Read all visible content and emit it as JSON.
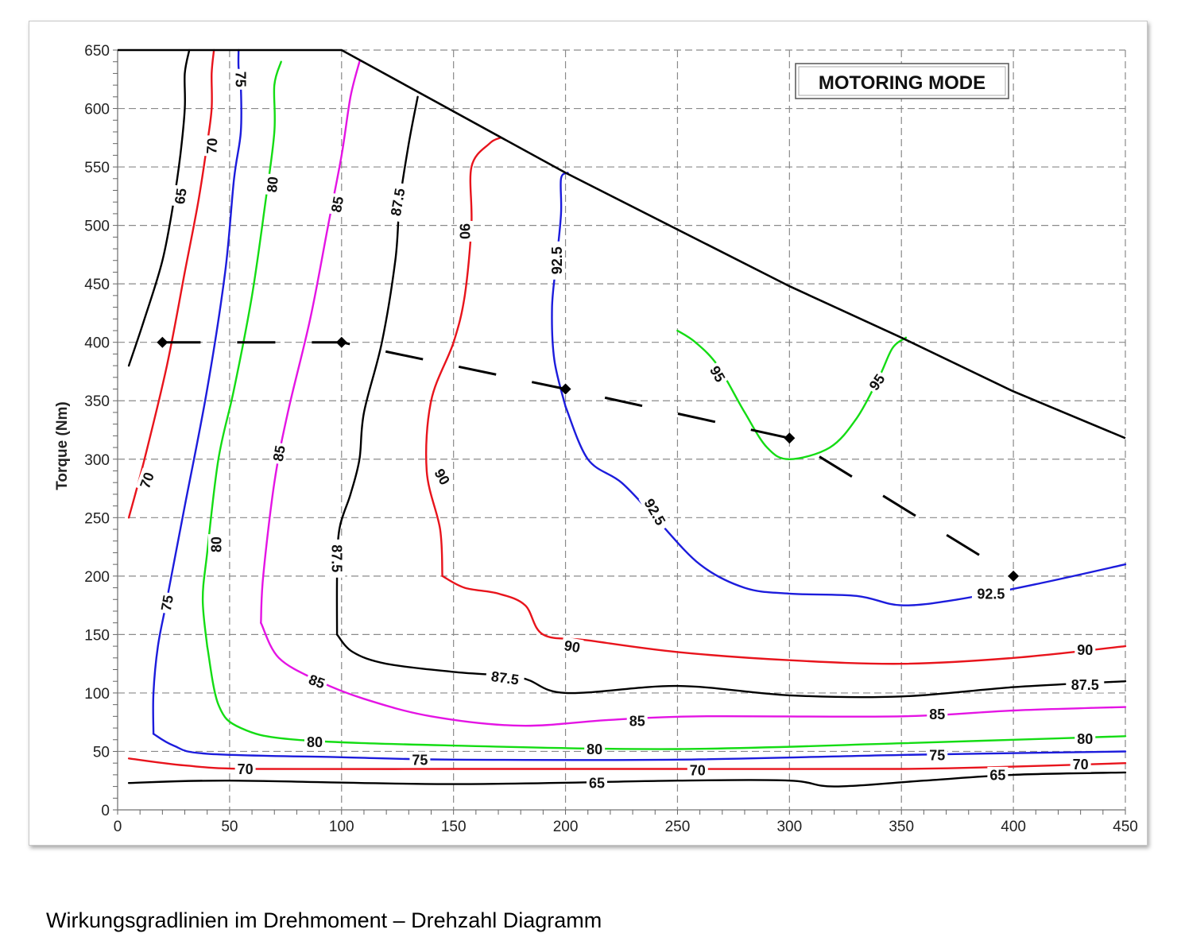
{
  "caption": "Wirkungsgradlinien im Drehmoment – Drehzahl Diagramm",
  "chart_data": {
    "type": "line",
    "title": "",
    "mode_label": "MOTORING MODE",
    "xlabel": "",
    "ylabel": "Torque (Nm)",
    "xlim": [
      0,
      450
    ],
    "ylim": [
      0,
      650
    ],
    "xticks": [
      0,
      50,
      100,
      150,
      200,
      250,
      300,
      350,
      400,
      450
    ],
    "yticks": [
      0,
      50,
      100,
      150,
      200,
      250,
      300,
      350,
      400,
      450,
      500,
      550,
      600,
      650
    ],
    "grid": true,
    "max_torque_envelope": [
      [
        0,
        650
      ],
      [
        100,
        650
      ],
      [
        200,
        545
      ],
      [
        300,
        448
      ],
      [
        350,
        404
      ],
      [
        400,
        358
      ],
      [
        450,
        318
      ]
    ],
    "operating_points": [
      [
        20,
        400
      ],
      [
        100,
        400
      ],
      [
        200,
        360
      ],
      [
        300,
        318
      ],
      [
        400,
        200
      ]
    ],
    "colors": {
      "65": "#000000",
      "70": "#e8141c",
      "75": "#1c1cdc",
      "80": "#14dc14",
      "85": "#e414e4",
      "87.5": "#000000",
      "90": "#e8141c",
      "92.5": "#1c1cdc",
      "95": "#14dc14"
    },
    "series": [
      {
        "level": "65",
        "points": [
          [
            5,
            380
          ],
          [
            12,
            420
          ],
          [
            20,
            470
          ],
          [
            25,
            520
          ],
          [
            28,
            560
          ],
          [
            30,
            600
          ],
          [
            30,
            630
          ],
          [
            32,
            650
          ]
        ]
      },
      {
        "level": "70",
        "points": [
          [
            5,
            250
          ],
          [
            12,
            300
          ],
          [
            22,
            380
          ],
          [
            30,
            460
          ],
          [
            36,
            520
          ],
          [
            40,
            570
          ],
          [
            42,
            600
          ],
          [
            42,
            630
          ],
          [
            43,
            650
          ]
        ]
      },
      {
        "level": "75",
        "points": [
          [
            16,
            65
          ],
          [
            16,
            100
          ],
          [
            18,
            140
          ],
          [
            22,
            180
          ],
          [
            30,
            260
          ],
          [
            40,
            360
          ],
          [
            48,
            460
          ],
          [
            52,
            540
          ],
          [
            55,
            580
          ],
          [
            55,
            620
          ],
          [
            54,
            635
          ],
          [
            54,
            650
          ]
        ]
      },
      {
        "level": "80",
        "points": [
          [
            40,
            140
          ],
          [
            38,
            180
          ],
          [
            40,
            220
          ],
          [
            45,
            300
          ],
          [
            52,
            360
          ],
          [
            60,
            440
          ],
          [
            66,
            520
          ],
          [
            70,
            580
          ],
          [
            70,
            620
          ],
          [
            73,
            640
          ]
        ]
      },
      {
        "level": "85",
        "points": [
          [
            64,
            160
          ],
          [
            65,
            200
          ],
          [
            70,
            280
          ],
          [
            76,
            340
          ],
          [
            86,
            420
          ],
          [
            94,
            500
          ],
          [
            100,
            560
          ],
          [
            104,
            610
          ],
          [
            108,
            640
          ]
        ]
      },
      {
        "level": "87.5",
        "points": [
          [
            98,
            150
          ],
          [
            98,
            200
          ],
          [
            99,
            240
          ],
          [
            104,
            270
          ],
          [
            108,
            300
          ],
          [
            110,
            340
          ],
          [
            118,
            400
          ],
          [
            124,
            470
          ],
          [
            126,
            520
          ],
          [
            130,
            570
          ],
          [
            134,
            610
          ]
        ]
      },
      {
        "level": "90",
        "points": [
          [
            145,
            200
          ],
          [
            144,
            240
          ],
          [
            138,
            290
          ],
          [
            140,
            350
          ],
          [
            150,
            400
          ],
          [
            155,
            440
          ],
          [
            158,
            500
          ],
          [
            158,
            550
          ],
          [
            166,
            570
          ],
          [
            171,
            575
          ]
        ]
      },
      {
        "level": "92.5",
        "points": [
          [
            200,
            345
          ],
          [
            195,
            385
          ],
          [
            194,
            430
          ],
          [
            196,
            470
          ],
          [
            198,
            510
          ],
          [
            198,
            540
          ],
          [
            201,
            545
          ]
        ]
      },
      {
        "level": "95",
        "points": [
          [
            250,
            410
          ],
          [
            258,
            400
          ],
          [
            268,
            380
          ],
          [
            280,
            340
          ],
          [
            290,
            310
          ],
          [
            300,
            300
          ],
          [
            318,
            310
          ],
          [
            330,
            335
          ],
          [
            340,
            370
          ],
          [
            346,
            395
          ],
          [
            352,
            404
          ]
        ]
      },
      {
        "level": "65",
        "points": [
          [
            5,
            23
          ],
          [
            50,
            25
          ],
          [
            150,
            22
          ],
          [
            250,
            25
          ],
          [
            300,
            25
          ],
          [
            320,
            20
          ],
          [
            360,
            25
          ],
          [
            400,
            30
          ],
          [
            450,
            32
          ]
        ]
      },
      {
        "level": "70",
        "points": [
          [
            5,
            44
          ],
          [
            30,
            38
          ],
          [
            60,
            35
          ],
          [
            150,
            35
          ],
          [
            250,
            35
          ],
          [
            350,
            35
          ],
          [
            400,
            37
          ],
          [
            450,
            40
          ]
        ]
      },
      {
        "level": "75",
        "points": [
          [
            16,
            65
          ],
          [
            25,
            55
          ],
          [
            40,
            48
          ],
          [
            100,
            45
          ],
          [
            150,
            43
          ],
          [
            250,
            43
          ],
          [
            350,
            47
          ],
          [
            450,
            50
          ]
        ]
      },
      {
        "level": "80",
        "points": [
          [
            40,
            140
          ],
          [
            45,
            90
          ],
          [
            55,
            70
          ],
          [
            80,
            60
          ],
          [
            150,
            55
          ],
          [
            250,
            52
          ],
          [
            350,
            57
          ],
          [
            400,
            60
          ],
          [
            450,
            63
          ]
        ]
      },
      {
        "level": "85",
        "points": [
          [
            64,
            160
          ],
          [
            72,
            130
          ],
          [
            90,
            110
          ],
          [
            110,
            95
          ],
          [
            140,
            80
          ],
          [
            180,
            72
          ],
          [
            220,
            77
          ],
          [
            260,
            80
          ],
          [
            350,
            80
          ],
          [
            400,
            85
          ],
          [
            450,
            88
          ]
        ]
      },
      {
        "level": "87.5",
        "points": [
          [
            98,
            150
          ],
          [
            105,
            135
          ],
          [
            120,
            125
          ],
          [
            150,
            118
          ],
          [
            180,
            113
          ],
          [
            200,
            100
          ],
          [
            250,
            106
          ],
          [
            300,
            98
          ],
          [
            350,
            97
          ],
          [
            400,
            105
          ],
          [
            450,
            110
          ]
        ]
      },
      {
        "level": "90",
        "points": [
          [
            145,
            200
          ],
          [
            155,
            190
          ],
          [
            170,
            185
          ],
          [
            182,
            175
          ],
          [
            190,
            150
          ],
          [
            210,
            145
          ],
          [
            250,
            135
          ],
          [
            300,
            128
          ],
          [
            350,
            125
          ],
          [
            400,
            130
          ],
          [
            450,
            140
          ]
        ]
      },
      {
        "level": "92.5",
        "points": [
          [
            200,
            345
          ],
          [
            210,
            300
          ],
          [
            225,
            280
          ],
          [
            240,
            250
          ],
          [
            260,
            210
          ],
          [
            280,
            190
          ],
          [
            300,
            185
          ],
          [
            330,
            183
          ],
          [
            350,
            175
          ],
          [
            375,
            180
          ],
          [
            410,
            193
          ],
          [
            450,
            210
          ]
        ]
      }
    ],
    "contour_labels": [
      {
        "text": "65",
        "x": 28,
        "y": 525,
        "level": "65",
        "angle": -82
      },
      {
        "text": "70",
        "x": 42,
        "y": 568,
        "level": "70",
        "angle": -87
      },
      {
        "text": "75",
        "x": 55,
        "y": 625,
        "level": "75",
        "angle": 90
      },
      {
        "text": "80",
        "x": 69,
        "y": 535,
        "level": "80",
        "angle": -85
      },
      {
        "text": "85",
        "x": 98,
        "y": 518,
        "level": "85",
        "angle": -80
      },
      {
        "text": "87.5",
        "x": 125,
        "y": 520,
        "level": "87.5",
        "angle": -80
      },
      {
        "text": "90",
        "x": 155,
        "y": 495,
        "level": "90",
        "angle": 90
      },
      {
        "text": "92.5",
        "x": 196,
        "y": 470,
        "level": "92.5",
        "angle": -90
      },
      {
        "text": "95",
        "x": 268,
        "y": 373,
        "level": "95",
        "angle": 60
      },
      {
        "text": "95",
        "x": 339,
        "y": 366,
        "level": "95",
        "angle": -55
      },
      {
        "text": "70",
        "x": 13,
        "y": 282,
        "level": "70",
        "angle": -70
      },
      {
        "text": "75",
        "x": 22,
        "y": 177,
        "level": "75",
        "angle": -80
      },
      {
        "text": "80",
        "x": 44,
        "y": 227,
        "level": "80",
        "angle": -90
      },
      {
        "text": "85",
        "x": 72,
        "y": 305,
        "level": "85",
        "angle": -80
      },
      {
        "text": "87.5",
        "x": 98,
        "y": 215,
        "level": "87.5",
        "angle": 90
      },
      {
        "text": "90",
        "x": 145,
        "y": 285,
        "level": "90",
        "angle": 60
      },
      {
        "text": "92.5",
        "x": 240,
        "y": 255,
        "level": "92.5",
        "angle": 60
      },
      {
        "text": "92.5",
        "x": 390,
        "y": 185,
        "level": "92.5",
        "angle": 0
      },
      {
        "text": "90",
        "x": 203,
        "y": 140,
        "level": "90",
        "angle": 10
      },
      {
        "text": "90",
        "x": 432,
        "y": 137,
        "level": "90",
        "angle": 0
      },
      {
        "text": "87.5",
        "x": 173,
        "y": 113,
        "level": "87.5",
        "angle": 8
      },
      {
        "text": "87.5",
        "x": 432,
        "y": 107,
        "level": "87.5",
        "angle": 0
      },
      {
        "text": "85",
        "x": 89,
        "y": 110,
        "level": "85",
        "angle": 20
      },
      {
        "text": "85",
        "x": 232,
        "y": 76,
        "level": "85",
        "angle": 0
      },
      {
        "text": "85",
        "x": 366,
        "y": 82,
        "level": "85",
        "angle": 0
      },
      {
        "text": "80",
        "x": 88,
        "y": 58,
        "level": "80",
        "angle": 0
      },
      {
        "text": "80",
        "x": 213,
        "y": 52,
        "level": "80",
        "angle": 0
      },
      {
        "text": "80",
        "x": 432,
        "y": 61,
        "level": "80",
        "angle": 0
      },
      {
        "text": "75",
        "x": 135,
        "y": 43,
        "level": "75",
        "angle": 0
      },
      {
        "text": "75",
        "x": 366,
        "y": 47,
        "level": "75",
        "angle": 0
      },
      {
        "text": "70",
        "x": 57,
        "y": 35,
        "level": "70",
        "angle": 0
      },
      {
        "text": "70",
        "x": 259,
        "y": 34,
        "level": "70",
        "angle": 0
      },
      {
        "text": "70",
        "x": 430,
        "y": 39,
        "level": "70",
        "angle": 0
      },
      {
        "text": "65",
        "x": 214,
        "y": 23,
        "level": "65",
        "angle": 0
      },
      {
        "text": "65",
        "x": 393,
        "y": 30,
        "level": "65",
        "angle": 0
      }
    ]
  }
}
